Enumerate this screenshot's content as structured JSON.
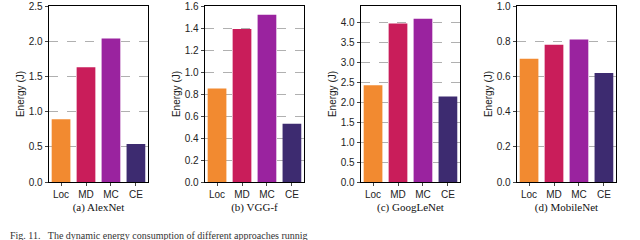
{
  "chart_data": [
    {
      "type": "bar",
      "title": "(a) AlexNet",
      "ylabel": "Energy (J)",
      "categories": [
        "Loc",
        "MD",
        "MC",
        "CE"
      ],
      "values": [
        0.89,
        1.63,
        2.04,
        0.54
      ],
      "colors": [
        "#f28a30",
        "#c91d5a",
        "#9a239f",
        "#3d2b70"
      ],
      "ylim": [
        0,
        2.5
      ],
      "yticks": [
        {
          "value": 0,
          "label": "0.0"
        },
        0.5,
        {
          "value": 1,
          "label": "1.0"
        },
        1.5,
        {
          "value": 2,
          "label": "2.0"
        },
        2.5
      ],
      "grid": true
    },
    {
      "type": "bar",
      "title": "(b) VGG-f",
      "ylabel": "Energy (J)",
      "categories": [
        "Loc",
        "MD",
        "MC",
        "CE"
      ],
      "values": [
        0.85,
        1.39,
        1.52,
        0.53
      ],
      "colors": [
        "#f28a30",
        "#c91d5a",
        "#9a239f",
        "#3d2b70"
      ],
      "ylim": [
        0,
        1.6
      ],
      "yticks": [
        {
          "value": 0,
          "label": "0.0"
        },
        0.2,
        0.4,
        0.6,
        0.8,
        {
          "value": 1,
          "label": "1.0"
        },
        1.2,
        1.4,
        1.6
      ],
      "grid": true
    },
    {
      "type": "bar",
      "title": "(c) GoogLeNet",
      "ylabel": "Energy (J)",
      "categories": [
        "Loc",
        "MD",
        "MC",
        "CE"
      ],
      "values": [
        2.42,
        3.96,
        4.08,
        2.14
      ],
      "colors": [
        "#f28a30",
        "#c91d5a",
        "#9a239f",
        "#3d2b70"
      ],
      "ylim": [
        0,
        4.4
      ],
      "yticks": [
        {
          "value": 0,
          "label": "0.0"
        },
        0.5,
        {
          "value": 1,
          "label": "1.0"
        },
        1.5,
        {
          "value": 2,
          "label": "2.0"
        },
        2.5,
        {
          "value": 3,
          "label": "3.0"
        },
        3.5,
        {
          "value": 4,
          "label": "4.0"
        }
      ],
      "grid": true
    },
    {
      "type": "bar",
      "title": "(d) MobileNet",
      "ylabel": "Energy (J)",
      "categories": [
        "Loc",
        "MD",
        "MC",
        "CE"
      ],
      "values": [
        0.7,
        0.78,
        0.81,
        0.62
      ],
      "colors": [
        "#f28a30",
        "#c91d5a",
        "#9a239f",
        "#3d2b70"
      ],
      "ylim": [
        0,
        1.0
      ],
      "yticks": [
        {
          "value": 0,
          "label": "0.0"
        },
        0.2,
        0.4,
        0.6,
        0.8,
        {
          "value": 1,
          "label": "1.0"
        }
      ],
      "grid": true
    }
  ],
  "caption": "Fig. 11.   The dynamic energy consumption of different approaches runnig"
}
